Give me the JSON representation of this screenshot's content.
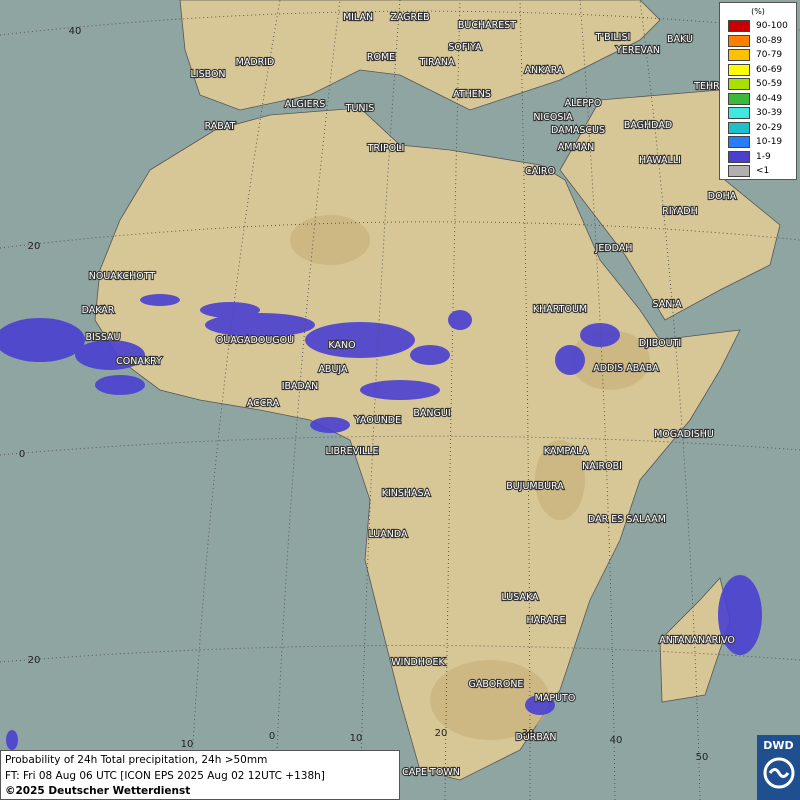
{
  "cities": [
    "MILAN",
    "ZAGREB",
    "BUCHAREST",
    "T'BILISI",
    "BAKU",
    "MADRID",
    "ROME",
    "SOFIYA",
    "YEREVAN",
    "LISBON",
    "TIRANA",
    "ANKARA",
    "TEHRA",
    "ATHENS",
    "ALGIERS",
    "TUNIS",
    "ALEPPO",
    "RABAT",
    "NICOSIA",
    "BAGHDAD",
    "TRIPOLI",
    "DAMASCUS",
    "AMMAN",
    "HAWALLI",
    "CAIRO",
    "DOHA",
    "RIYADH",
    "NOUAKCHOTT",
    "JEDDAH",
    "DAKAR",
    "BISSAU",
    "KHARTOUM",
    "SAN'A",
    "OUAGADOUGOU",
    "KANO",
    "DJIBOUTI",
    "CONAKRY",
    "ABUJA",
    "ADDIS ABABA",
    "IBADAN",
    "ACCRA",
    "BANGUI",
    "YAOUNDE",
    "MOGADISHU",
    "LIBREVILLE",
    "KAMPALA",
    "NAIROBI",
    "BUJUMBURA",
    "KINSHASA",
    "DAR ES SALAAM",
    "LUANDA",
    "LUSAKA",
    "HARARE",
    "ANTANANARIVO",
    "WINDHOEK",
    "GABORONE",
    "MAPUTO",
    "DURBAN",
    "CAPE TOWN"
  ],
  "grid_labels": {
    "lat": [
      "40",
      "20",
      "0",
      "20"
    ],
    "lon": [
      "10",
      "0",
      "10",
      "20",
      "30",
      "40",
      "50"
    ]
  },
  "legend": {
    "title": "(%)",
    "items": [
      {
        "label": "90-100",
        "color": "#c80000"
      },
      {
        "label": "80-89",
        "color": "#ff7f00"
      },
      {
        "label": "70-79",
        "color": "#ffc000"
      },
      {
        "label": "60-69",
        "color": "#ffff00"
      },
      {
        "label": "50-59",
        "color": "#a8e000"
      },
      {
        "label": "40-49",
        "color": "#3cb83c"
      },
      {
        "label": "30-39",
        "color": "#40e8e0"
      },
      {
        "label": "20-29",
        "color": "#20c0c8"
      },
      {
        "label": "10-19",
        "color": "#2a7cff"
      },
      {
        "label": "1-9",
        "color": "#4a40d0"
      },
      {
        "label": "<1",
        "color": "#b0b0b0"
      }
    ]
  },
  "footer": {
    "line1": "Probability of 24h Total precipitation, 24h >50mm",
    "line2": "FT: Fri 08 Aug 06 UTC [ICON EPS 2025 Aug 02 12UTC +138h]",
    "line3": "©2025 Deutscher Wetterdienst"
  },
  "logo": "DWD"
}
